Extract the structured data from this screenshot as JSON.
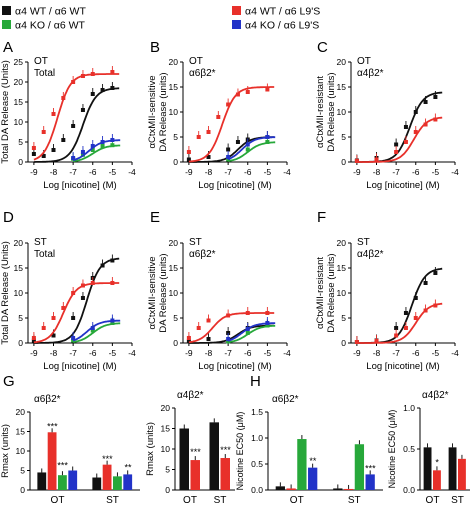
{
  "legend": [
    {
      "label": "α4 WT / α6 WT",
      "color": "#111111"
    },
    {
      "label": "α4 WT / α6 L9'S",
      "color": "#e8302a"
    },
    {
      "label": "α4 KO / α6 WT",
      "color": "#27a83a"
    },
    {
      "label": "α4 KO / α6 L9'S",
      "color": "#2233c8"
    }
  ],
  "colors": {
    "wt": "#111111",
    "l9s": "#e8302a",
    "ko": "#27a83a",
    "kol9s": "#2233c8"
  },
  "chart_data": [
    {
      "id": "A",
      "type": "line",
      "letter": "A",
      "label1": "OT",
      "label2": "Total",
      "ylabel": "Total DA Release (Units)",
      "xlabel": "Log [nicotine] (M)",
      "xlim": [
        -9.3,
        -4
      ],
      "ylim": [
        0,
        25
      ],
      "xticks": [
        "-9",
        "-8",
        "-7",
        "-6",
        "-5",
        "-4"
      ],
      "yticks": [
        "0",
        "5",
        "10",
        "15",
        "20",
        "25"
      ],
      "series": [
        {
          "key": "wt",
          "max": 18.5,
          "ec50": -6.5,
          "pts": [
            [
              -9,
              2
            ],
            [
              -8.5,
              1.5
            ],
            [
              -8,
              3
            ],
            [
              -7.5,
              5.5
            ],
            [
              -7,
              9
            ],
            [
              -6.5,
              13
            ],
            [
              -6,
              17
            ],
            [
              -5.5,
              18
            ],
            [
              -5,
              18.5
            ]
          ]
        },
        {
          "key": "l9s",
          "max": 22,
          "ec50": -7.8,
          "pts": [
            [
              -9,
              3.5
            ],
            [
              -8.5,
              7.5
            ],
            [
              -8,
              12
            ],
            [
              -7.5,
              16
            ],
            [
              -7,
              20
            ],
            [
              -6.5,
              21.5
            ],
            [
              -6,
              22
            ],
            [
              -5,
              22.5
            ]
          ]
        },
        {
          "key": "ko",
          "max": 4.2,
          "ec50": -6,
          "pts": [
            [
              -7,
              0.8
            ],
            [
              -6.5,
              1.8
            ],
            [
              -6,
              3
            ],
            [
              -5.5,
              4
            ],
            [
              -5,
              4.2
            ]
          ]
        },
        {
          "key": "kol9s",
          "max": 5.5,
          "ec50": -6.2,
          "pts": [
            [
              -7,
              1
            ],
            [
              -6.5,
              2.5
            ],
            [
              -6,
              4
            ],
            [
              -5.5,
              5
            ],
            [
              -5,
              5.5
            ]
          ]
        }
      ]
    },
    {
      "id": "B",
      "type": "line",
      "letter": "B",
      "label1": "OT",
      "label2": "α6β2*",
      "ylabel": "αCtxMII-sensitive DA Release (units)",
      "xlabel": "Log [nicotine] (M)",
      "xlim": [
        -9.3,
        -4
      ],
      "ylim": [
        0,
        20
      ],
      "xticks": [
        "-9",
        "-8",
        "-7",
        "-6",
        "-5",
        "-4"
      ],
      "yticks": [
        "0",
        "5",
        "10",
        "15",
        "20"
      ],
      "series": [
        {
          "key": "wt",
          "max": 5,
          "ec50": -6.5,
          "pts": [
            [
              -9,
              0.5
            ],
            [
              -8,
              1
            ],
            [
              -7,
              2.5
            ],
            [
              -6.5,
              4
            ],
            [
              -6,
              4.5
            ],
            [
              -5,
              5
            ]
          ]
        },
        {
          "key": "l9s",
          "max": 15,
          "ec50": -7.3,
          "pts": [
            [
              -9,
              2
            ],
            [
              -8.5,
              5
            ],
            [
              -8,
              6
            ],
            [
              -7.5,
              9
            ],
            [
              -7,
              11.5
            ],
            [
              -6.5,
              13.5
            ],
            [
              -6,
              14
            ],
            [
              -5,
              14.5
            ]
          ]
        },
        {
          "key": "ko",
          "max": 4,
          "ec50": -6,
          "pts": [
            [
              -7,
              0.5
            ],
            [
              -6,
              2.5
            ],
            [
              -5,
              4
            ]
          ]
        },
        {
          "key": "kol9s",
          "max": 5,
          "ec50": -6.3,
          "pts": [
            [
              -7,
              1
            ],
            [
              -6,
              3.5
            ],
            [
              -5,
              5
            ]
          ]
        }
      ]
    },
    {
      "id": "C",
      "type": "line",
      "letter": "C",
      "label1": "OT",
      "label2": "α4β2*",
      "ylabel": "αCtxMII-resistant DA Release (units)",
      "xlabel": "Log [nicotine] (M)",
      "xlim": [
        -9.3,
        -4
      ],
      "ylim": [
        0,
        20
      ],
      "xticks": [
        "-9",
        "-8",
        "-7",
        "-6",
        "-5",
        "-4"
      ],
      "yticks": [
        "0",
        "5",
        "10",
        "15",
        "20"
      ],
      "series": [
        {
          "key": "wt",
          "max": 14,
          "ec50": -6.3,
          "pts": [
            [
              -9,
              0.3
            ],
            [
              -8,
              0.8
            ],
            [
              -7,
              3.5
            ],
            [
              -6.5,
              7
            ],
            [
              -6,
              10
            ],
            [
              -5.5,
              12
            ],
            [
              -5,
              13
            ]
          ]
        },
        {
          "key": "l9s",
          "max": 9,
          "ec50": -6.1,
          "pts": [
            [
              -9,
              0.2
            ],
            [
              -8,
              0.5
            ],
            [
              -7,
              2
            ],
            [
              -6.5,
              4
            ],
            [
              -6,
              6
            ],
            [
              -5.5,
              7.5
            ],
            [
              -5,
              8.5
            ]
          ]
        }
      ]
    },
    {
      "id": "D",
      "type": "line",
      "letter": "D",
      "label1": "ST",
      "label2": "Total",
      "ylabel": "Total DA Release (Units)",
      "xlabel": "Log [nicotine] (M)",
      "xlim": [
        -9.3,
        -4
      ],
      "ylim": [
        0,
        20
      ],
      "xticks": [
        "-9",
        "-8",
        "-7",
        "-6",
        "-5",
        "-4"
      ],
      "yticks": [
        "0",
        "5",
        "10",
        "15",
        "20"
      ],
      "series": [
        {
          "key": "wt",
          "max": 17,
          "ec50": -6.3,
          "pts": [
            [
              -9,
              0.5
            ],
            [
              -8,
              1.5
            ],
            [
              -7,
              5
            ],
            [
              -6.5,
              9
            ],
            [
              -6,
              13
            ],
            [
              -5.5,
              15.5
            ],
            [
              -5,
              16.5
            ]
          ]
        },
        {
          "key": "l9s",
          "max": 12,
          "ec50": -7.5,
          "pts": [
            [
              -9,
              1
            ],
            [
              -8.5,
              3
            ],
            [
              -8,
              5
            ],
            [
              -7.5,
              7
            ],
            [
              -7,
              10
            ],
            [
              -6.5,
              11.5
            ],
            [
              -6,
              12
            ],
            [
              -5,
              12
            ]
          ]
        },
        {
          "key": "ko",
          "max": 4,
          "ec50": -6,
          "pts": [
            [
              -7,
              0.5
            ],
            [
              -6,
              2.5
            ],
            [
              -5,
              4
            ]
          ]
        },
        {
          "key": "kol9s",
          "max": 4.5,
          "ec50": -6.3,
          "pts": [
            [
              -7,
              1
            ],
            [
              -6,
              3
            ],
            [
              -5,
              4.5
            ]
          ]
        }
      ]
    },
    {
      "id": "E",
      "type": "line",
      "letter": "E",
      "label1": "ST",
      "label2": "α6β2*",
      "ylabel": "αCtxMII-sensitive DA Release (units)",
      "xlabel": "Log [nicotine] (M)",
      "xlim": [
        -9.3,
        -4
      ],
      "ylim": [
        0,
        20
      ],
      "xticks": [
        "-9",
        "-8",
        "-7",
        "-6",
        "-5",
        "-4"
      ],
      "yticks": [
        "0",
        "5",
        "10",
        "15",
        "20"
      ],
      "series": [
        {
          "key": "wt",
          "max": 3.5,
          "ec50": -6.5,
          "pts": [
            [
              -9,
              0.3
            ],
            [
              -8,
              0.8
            ],
            [
              -7,
              2
            ],
            [
              -6,
              3
            ],
            [
              -5,
              3.5
            ]
          ]
        },
        {
          "key": "l9s",
          "max": 6,
          "ec50": -7.8,
          "pts": [
            [
              -9,
              1
            ],
            [
              -8.5,
              3
            ],
            [
              -8,
              4.5
            ],
            [
              -7,
              5.5
            ],
            [
              -6,
              6
            ],
            [
              -5,
              6
            ]
          ]
        },
        {
          "key": "ko",
          "max": 3.5,
          "ec50": -6,
          "pts": [
            [
              -7,
              0.3
            ],
            [
              -6,
              2
            ],
            [
              -5,
              3.5
            ]
          ]
        },
        {
          "key": "kol9s",
          "max": 4,
          "ec50": -6.3,
          "pts": [
            [
              -7,
              0.8
            ],
            [
              -6,
              2.8
            ],
            [
              -5,
              4
            ]
          ]
        }
      ]
    },
    {
      "id": "F",
      "type": "line",
      "letter": "F",
      "label1": "ST",
      "label2": "α4β2*",
      "ylabel": "αCtxMII-resistant DA Release (units)",
      "xlabel": "Log [nicotine] (M)",
      "xlim": [
        -9.3,
        -4
      ],
      "ylim": [
        0,
        20
      ],
      "xticks": [
        "-9",
        "-8",
        "-7",
        "-6",
        "-5",
        "-4"
      ],
      "yticks": [
        "0",
        "5",
        "10",
        "15",
        "20"
      ],
      "series": [
        {
          "key": "wt",
          "max": 15,
          "ec50": -6.2,
          "pts": [
            [
              -9,
              0.2
            ],
            [
              -8,
              0.5
            ],
            [
              -7,
              3
            ],
            [
              -6.5,
              6
            ],
            [
              -6,
              9
            ],
            [
              -5.5,
              12
            ],
            [
              -5,
              14
            ]
          ]
        },
        {
          "key": "l9s",
          "max": 8,
          "ec50": -6,
          "pts": [
            [
              -9,
              0.2
            ],
            [
              -8,
              0.4
            ],
            [
              -7,
              1.5
            ],
            [
              -6.5,
              3
            ],
            [
              -6,
              5
            ],
            [
              -5.5,
              6.5
            ],
            [
              -5,
              7.5
            ]
          ]
        }
      ]
    },
    {
      "id": "G1",
      "type": "bar",
      "letter": "G",
      "title": "α6β2*",
      "ylabel": "Rmax (units)",
      "ylim": [
        0,
        20
      ],
      "yticks": [
        "0",
        "5",
        "10",
        "15",
        "20"
      ],
      "groups": [
        "OT",
        "ST"
      ],
      "values": [
        {
          "key": "wt",
          "v": [
            4.5,
            3.2
          ]
        },
        {
          "key": "l9s",
          "v": [
            14.8,
            6.5
          ]
        },
        {
          "key": "ko",
          "v": [
            3.8,
            3.5
          ]
        },
        {
          "key": "kol9s",
          "v": [
            5.0,
            4.0
          ]
        }
      ],
      "sig": [
        "***",
        "***",
        "***",
        "**"
      ]
    },
    {
      "id": "G2",
      "type": "bar",
      "title": "α4β2*",
      "ylabel": "Rmax (units)",
      "ylim": [
        0,
        20
      ],
      "yticks": [
        "0",
        "5",
        "10",
        "15",
        "20"
      ],
      "groups": [
        "OT",
        "ST"
      ],
      "values": [
        {
          "key": "wt",
          "v": [
            15,
            16.5
          ]
        },
        {
          "key": "l9s",
          "v": [
            7.3,
            7.8
          ]
        }
      ],
      "sig": [
        "***",
        "***"
      ]
    },
    {
      "id": "H1",
      "type": "bar",
      "letter": "H",
      "title": "α6β2*",
      "ylabel": "Nicotine EC50 (μM)",
      "ylim": [
        0,
        1.5
      ],
      "yticks": [
        "0.0",
        "0.5",
        "1.0",
        "1.5"
      ],
      "groups": [
        "OT",
        "ST"
      ],
      "values": [
        {
          "key": "wt",
          "v": [
            0.07,
            0.03
          ]
        },
        {
          "key": "l9s",
          "v": [
            0.03,
            0.02
          ]
        },
        {
          "key": "ko",
          "v": [
            0.98,
            0.88
          ]
        },
        {
          "key": "kol9s",
          "v": [
            0.43,
            0.3
          ]
        }
      ],
      "sig": [
        "**",
        "***"
      ]
    },
    {
      "id": "H2",
      "type": "bar",
      "title": "α4β2*",
      "ylabel": "Nicotine EC50 (μM)",
      "ylim": [
        0,
        1.0
      ],
      "yticks": [
        "0.0",
        "0.5",
        "1.0"
      ],
      "groups": [
        "OT",
        "ST"
      ],
      "values": [
        {
          "key": "wt",
          "v": [
            0.52,
            0.52
          ]
        },
        {
          "key": "l9s",
          "v": [
            0.24,
            0.38
          ]
        }
      ],
      "sig": [
        "*"
      ]
    }
  ]
}
